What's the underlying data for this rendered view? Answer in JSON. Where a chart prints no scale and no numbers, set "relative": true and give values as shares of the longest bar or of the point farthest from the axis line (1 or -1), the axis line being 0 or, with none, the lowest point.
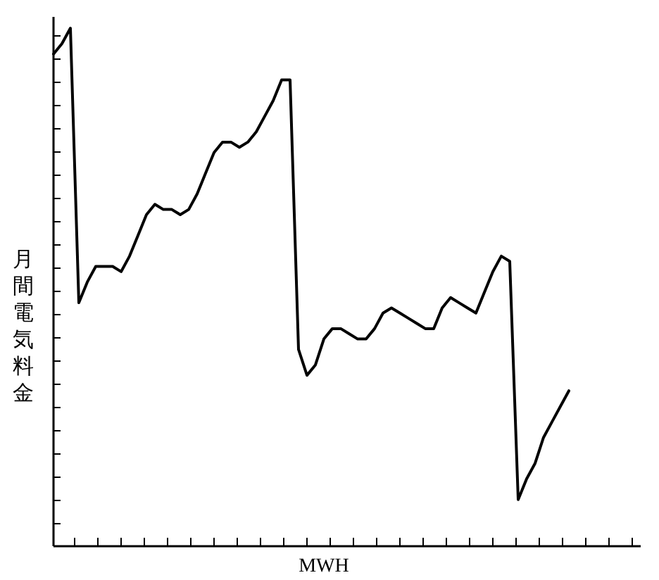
{
  "chart_data": {
    "type": "line",
    "relative": true,
    "ylabel": "月間電気料金",
    "xlabel": "MWH",
    "color": "#000000",
    "categories": [
      null,
      null,
      null,
      null,
      null,
      null,
      null,
      null,
      null,
      null,
      null,
      null,
      null,
      null,
      null,
      null,
      null,
      null,
      null,
      null,
      null,
      null,
      null,
      null,
      null,
      null,
      null,
      null,
      null,
      null,
      null,
      null,
      null,
      null,
      null,
      null,
      null,
      null,
      null,
      null,
      null,
      null,
      null,
      null,
      null,
      null,
      null,
      null,
      null,
      null,
      null,
      null,
      null,
      null,
      null,
      null,
      null,
      null,
      null,
      null,
      null,
      null
    ],
    "values": [
      0.95,
      0.97,
      1.0,
      0.47,
      0.51,
      0.54,
      0.54,
      0.54,
      0.53,
      0.56,
      0.6,
      0.64,
      0.66,
      0.65,
      0.65,
      0.64,
      0.65,
      0.68,
      0.72,
      0.76,
      0.78,
      0.78,
      0.77,
      0.78,
      0.8,
      0.83,
      0.86,
      0.9,
      0.9,
      0.38,
      0.33,
      0.35,
      0.4,
      0.42,
      0.42,
      0.41,
      0.4,
      0.4,
      0.42,
      0.45,
      0.46,
      0.45,
      0.44,
      0.43,
      0.42,
      0.42,
      0.46,
      0.48,
      0.47,
      0.46,
      0.45,
      0.49,
      0.53,
      0.56,
      0.55,
      0.09,
      0.13,
      0.16,
      0.21,
      0.24,
      0.27,
      0.3
    ]
  }
}
